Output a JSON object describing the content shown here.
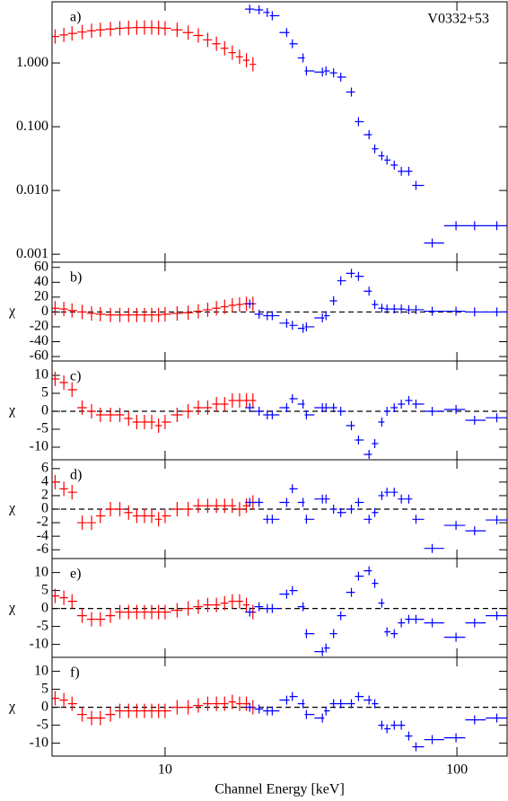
{
  "chart_data": [
    {
      "type": "scatter",
      "label": "a)",
      "annotation": "V0332+53",
      "log_y": true,
      "xlim": [
        4.1,
        148.6
      ],
      "xticks": [
        10,
        100
      ],
      "ylim": [
        0.00075,
        9.1
      ],
      "yticks": [
        {
          "value": 1,
          "label": "1.000"
        },
        {
          "value": 0.1,
          "label": "0.100"
        },
        {
          "value": 0.01,
          "label": "0.010"
        },
        {
          "value": 0.001,
          "label": "0.001"
        }
      ],
      "series": [
        {
          "color": "#ff0000",
          "x": [
            4.2,
            4.5,
            4.8,
            5.2,
            5.6,
            6,
            6.5,
            7,
            7.5,
            8,
            8.5,
            9,
            9.5,
            10,
            11,
            12,
            13,
            14,
            15,
            16,
            17,
            18,
            19,
            20
          ],
          "values": [
            2.6,
            2.75,
            2.9,
            3.05,
            3.2,
            3.3,
            3.4,
            3.5,
            3.55,
            3.6,
            3.6,
            3.6,
            3.55,
            3.5,
            3.3,
            3.0,
            2.7,
            2.3,
            2.0,
            1.7,
            1.45,
            1.25,
            1.1,
            0.95
          ]
        },
        {
          "color": "#0000ff",
          "x": [
            19.5,
            21,
            22.4,
            23.3,
            26.1,
            27.3,
            29.7,
            30.5,
            34.6,
            35.6,
            37.8,
            40,
            43.5,
            46,
            50,
            52.3,
            55.3,
            57.6,
            61,
            64.5,
            68.4,
            72.4,
            82.3,
            99.3,
            115,
            137
          ],
          "values": [
            7,
            6.8,
            6.2,
            5.5,
            3.0,
            2.0,
            1.2,
            0.75,
            0.72,
            0.75,
            0.7,
            0.6,
            0.35,
            0.12,
            0.075,
            0.045,
            0.035,
            0.03,
            0.025,
            0.02,
            0.02,
            0.012,
            0.0015,
            0.0028,
            0.0028,
            0.0028
          ]
        }
      ]
    },
    {
      "type": "scatter",
      "label": "b)",
      "ylabel": "χ",
      "hline": 0,
      "xlim": [
        4.1,
        148.6
      ],
      "xticks": [
        10,
        100
      ],
      "ylim": [
        -66,
        67
      ],
      "yticks": [
        -60,
        -40,
        -20,
        0,
        20,
        40,
        60
      ],
      "series": [
        {
          "color": "#ff0000",
          "x": [
            4.2,
            4.5,
            4.8,
            5.2,
            5.6,
            6,
            6.5,
            7,
            7.5,
            8,
            8.5,
            9,
            9.5,
            10,
            11,
            12,
            13,
            14,
            15,
            16,
            17,
            18,
            19,
            20
          ],
          "values": [
            5,
            4,
            2,
            0,
            -2,
            -3,
            -4,
            -4,
            -4,
            -4,
            -4,
            -4,
            -4,
            -3,
            -2,
            -1,
            1,
            3,
            5,
            7,
            9,
            10,
            11,
            11
          ]
        },
        {
          "color": "#0000ff",
          "x": [
            19.5,
            21,
            22.4,
            23.3,
            26.1,
            27.3,
            29.7,
            30.5,
            34.6,
            35.6,
            37.8,
            40,
            43.5,
            46,
            50,
            52.3,
            55.3,
            57.6,
            61,
            64.5,
            68.4,
            72.4,
            82.3,
            99.3,
            115,
            137
          ],
          "values": [
            11,
            -3,
            -5,
            -5,
            -15,
            -18,
            -22,
            -20,
            -8,
            -5,
            15,
            42,
            52,
            48,
            28,
            10,
            5,
            4,
            4,
            4,
            3,
            3,
            1,
            1,
            0,
            0
          ]
        }
      ]
    },
    {
      "type": "scatter",
      "label": "c)",
      "ylabel": "χ",
      "hline": 0,
      "xlim": [
        4.1,
        148.6
      ],
      "xticks": [
        10,
        100
      ],
      "ylim": [
        -13.5,
        14
      ],
      "yticks": [
        -10,
        -5,
        0,
        5,
        10
      ],
      "series": [
        {
          "color": "#ff0000",
          "x": [
            4.2,
            4.5,
            4.8,
            5.2,
            5.6,
            6,
            6.5,
            7,
            7.5,
            8,
            8.5,
            9,
            9.5,
            10,
            11,
            12,
            13,
            14,
            15,
            16,
            17,
            18,
            19,
            20
          ],
          "values": [
            9,
            8,
            6,
            1,
            0,
            -1,
            -1,
            -1,
            -2,
            -3,
            -3,
            -3,
            -4,
            -3,
            -1,
            0,
            1,
            1,
            2,
            2,
            3,
            3,
            3,
            3
          ]
        },
        {
          "color": "#0000ff",
          "x": [
            19.5,
            21,
            22.4,
            23.3,
            26.1,
            27.3,
            29.7,
            30.5,
            34.6,
            35.6,
            37.8,
            40,
            43.5,
            46,
            50,
            52.3,
            55.3,
            57.6,
            61,
            64.5,
            68.4,
            72.4,
            82.3,
            99.3,
            115,
            137
          ],
          "values": [
            1,
            0,
            -1,
            -1,
            1,
            3.5,
            2,
            -1,
            1,
            1,
            1,
            0,
            -4,
            -8,
            -12,
            -9,
            -3,
            0,
            1,
            2,
            3,
            2,
            0,
            0.5,
            -2.5,
            -1.8
          ]
        }
      ]
    },
    {
      "type": "scatter",
      "label": "d)",
      "ylabel": "χ",
      "hline": 0,
      "xlim": [
        4.1,
        148.6
      ],
      "xticks": [
        10,
        100
      ],
      "ylim": [
        -7.3,
        7.3
      ],
      "yticks": [
        -6,
        -4,
        -2,
        0,
        2,
        4,
        6
      ],
      "series": [
        {
          "color": "#ff0000",
          "x": [
            4.2,
            4.5,
            4.8,
            5.2,
            5.6,
            6,
            6.5,
            7,
            7.5,
            8,
            8.5,
            9,
            9.5,
            10,
            11,
            12,
            13,
            14,
            15,
            16,
            17,
            18,
            19,
            20
          ],
          "values": [
            4,
            3,
            2.5,
            -2,
            -2,
            -1,
            0,
            0,
            -0.5,
            -1,
            -1,
            -1,
            -1.5,
            -1,
            0,
            0,
            0.5,
            0.5,
            0.5,
            0.5,
            0.5,
            0,
            0.5,
            1
          ]
        },
        {
          "color": "#0000ff",
          "x": [
            19.5,
            21,
            22.4,
            23.3,
            26.1,
            27.3,
            29.7,
            30.5,
            34.6,
            35.6,
            37.8,
            40,
            43.5,
            46,
            50,
            52.3,
            55.3,
            57.6,
            61,
            64.5,
            68.4,
            72.4,
            82.3,
            99.3,
            115,
            137
          ],
          "values": [
            1,
            1,
            -1.5,
            -1.5,
            1,
            3,
            1,
            -1.5,
            1.5,
            1.5,
            0,
            -0.5,
            0,
            1,
            -1.5,
            -0.5,
            2,
            2.5,
            2.5,
            1.5,
            1.5,
            -1.5,
            -5.8,
            -2.4,
            -3.2,
            -1.6
          ]
        }
      ]
    },
    {
      "type": "scatter",
      "label": "e)",
      "ylabel": "χ",
      "hline": 0,
      "xlim": [
        4.1,
        148.6
      ],
      "xticks": [
        10,
        100
      ],
      "ylim": [
        -13.6,
        13.9
      ],
      "yticks": [
        -10,
        -5,
        0,
        5,
        10
      ],
      "series": [
        {
          "color": "#ff0000",
          "x": [
            4.2,
            4.5,
            4.8,
            5.2,
            5.6,
            6,
            6.5,
            7,
            7.5,
            8,
            8.5,
            9,
            9.5,
            10,
            11,
            12,
            13,
            14,
            15,
            16,
            17,
            18,
            19,
            20
          ],
          "values": [
            3.5,
            3,
            2,
            -2,
            -3,
            -3,
            -2,
            -1,
            -1,
            -1,
            -1,
            -1,
            -1,
            -1,
            -0.5,
            0,
            0.5,
            1,
            1,
            1.5,
            2,
            2,
            1,
            -1
          ]
        },
        {
          "color": "#0000ff",
          "x": [
            19.5,
            21,
            22.4,
            23.3,
            26.1,
            27.3,
            29.7,
            30.5,
            34.6,
            35.6,
            37.8,
            40,
            43.5,
            46,
            50,
            52.3,
            55.3,
            57.6,
            61,
            64.5,
            68.4,
            72.4,
            82.3,
            99.3,
            115,
            137
          ],
          "values": [
            -1,
            0.5,
            0,
            0,
            4,
            5,
            0.5,
            -7,
            -12,
            -11,
            -7,
            -2,
            4.5,
            9,
            10.5,
            7,
            1.5,
            -6.5,
            -7,
            -4,
            -3,
            -3,
            -4,
            -8,
            -4,
            -2
          ]
        }
      ]
    },
    {
      "type": "scatter",
      "label": "f)",
      "ylabel": "χ",
      "hline": 0,
      "xlabel": "Channel Energy [keV]",
      "xlim": [
        4.1,
        148.6
      ],
      "xticks": [
        10,
        100
      ],
      "ylim": [
        -13.6,
        13.9
      ],
      "yticks": [
        -10,
        -5,
        0,
        5,
        10
      ],
      "series": [
        {
          "color": "#ff0000",
          "x": [
            4.2,
            4.5,
            4.8,
            5.2,
            5.6,
            6,
            6.5,
            7,
            7.5,
            8,
            8.5,
            9,
            9.5,
            10,
            11,
            12,
            13,
            14,
            15,
            16,
            17,
            18,
            19,
            20
          ],
          "values": [
            2.5,
            2,
            1,
            -2,
            -3,
            -3,
            -2,
            -1,
            -1,
            -1,
            -1,
            -1,
            -1,
            -1,
            0,
            0,
            0.5,
            1,
            1,
            1,
            1.5,
            1,
            1,
            0
          ]
        },
        {
          "color": "#0000ff",
          "x": [
            19.5,
            21,
            22.4,
            23.3,
            26.1,
            27.3,
            29.7,
            30.5,
            34.6,
            35.6,
            37.8,
            40,
            43.5,
            46,
            50,
            52.3,
            55.3,
            57.6,
            61,
            64.5,
            68.4,
            72.4,
            82.3,
            99.3,
            115,
            137
          ],
          "values": [
            0,
            -0.5,
            -1,
            -1,
            2,
            3,
            1,
            -2,
            -3,
            -1,
            1,
            1,
            1,
            3,
            2,
            1,
            -5,
            -6,
            -5,
            -5,
            -8,
            -11,
            -9,
            -8.5,
            -3.5,
            -3
          ]
        }
      ]
    }
  ]
}
